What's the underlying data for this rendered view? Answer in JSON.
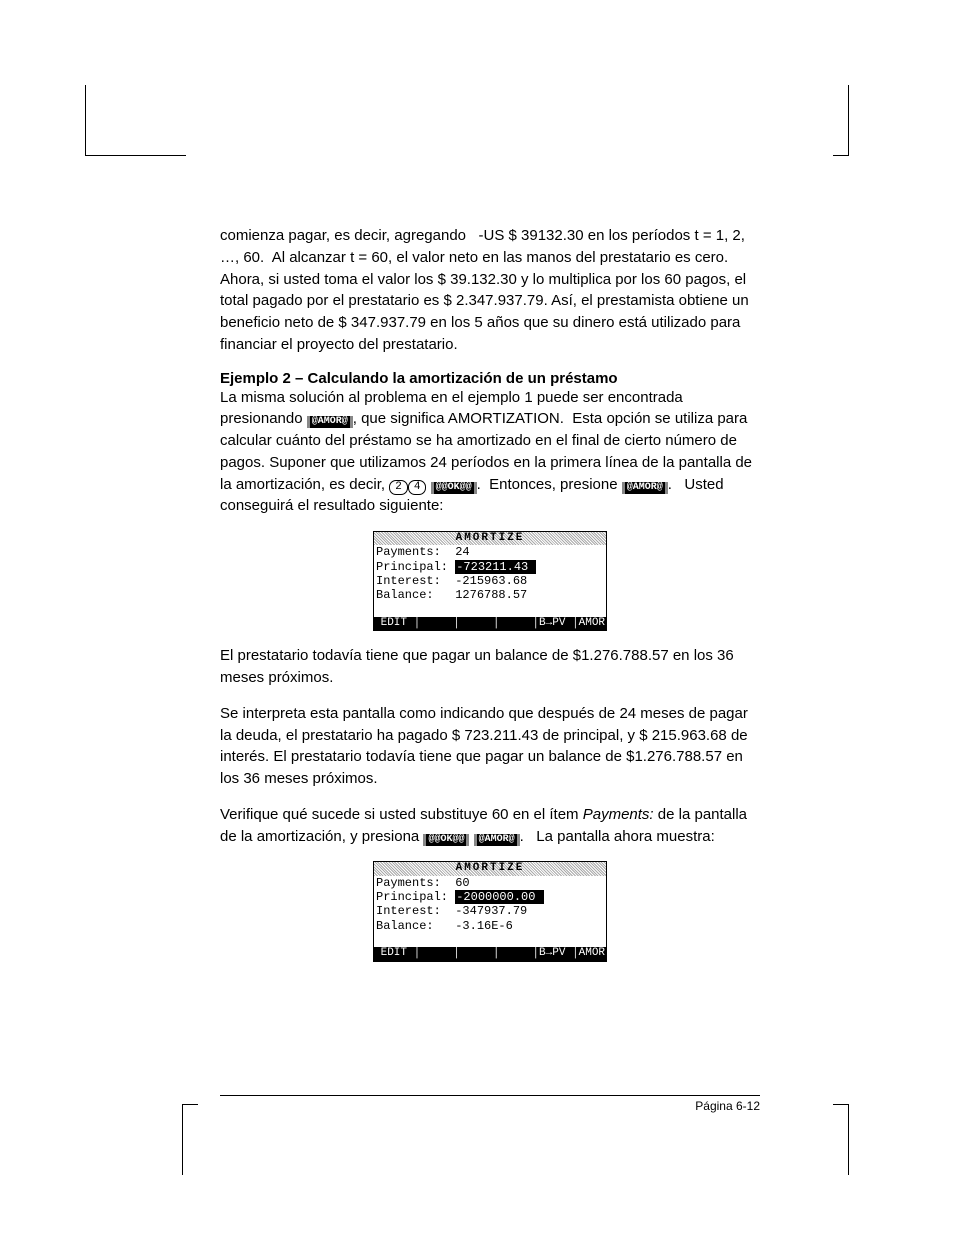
{
  "page": {
    "footer_label": "Página 6-12"
  },
  "para1": "comienza pagar, es decir, agregando   -US $ 39132.30 en los períodos t = 1, 2, …, 60.  Al alcanzar t = 60, el valor neto en las manos del prestatario es cero. Ahora, si usted toma el valor los $ 39.132.30 y lo multiplica por los 60 pagos, el total pagado por el prestatario es $ 2.347.937.79. Así, el prestamista obtiene un beneficio neto de $ 347.937.79 en los 5 años que su dinero está utilizado para financiar el proyecto del prestatario.",
  "heading2": "Ejemplo 2 – Calculando la amortización de un préstamo",
  "p2a": "La misma solución al problema en el ejemplo 1 puede ser encontrada presionando ",
  "p2b": ", que significa AMORTIZATION.  Esta opción se utiliza para calcular cuánto del préstamo se ha amortizado en el final de cierto número de pagos. Suponer que utilizamos 24 períodos en la primera línea de la pantalla de la amortización, es decir, ",
  "p2c": ".  Entonces, presione ",
  "p2d": ".   Usted conseguirá el resultado siguiente:",
  "key_amor": "@AMOR@",
  "key_ok": "@@OK@@",
  "key_2": "2",
  "key_4": "4",
  "screen1": {
    "title": "AMORTIZE",
    "rows": [
      {
        "label": "Payments:  ",
        "value": "24",
        "hl": false
      },
      {
        "label": "Principal: ",
        "value": "-723211.43 ",
        "hl": true
      },
      {
        "label": "Interest:  ",
        "value": "-215963.68",
        "hl": false
      },
      {
        "label": "Balance:   ",
        "value": "1276788.57",
        "hl": false
      }
    ],
    "footer": " EDIT │     │     │     │B→PV │AMOR"
  },
  "para3": "El prestatario todavía tiene que pagar un balance de $1.276.788.57 en los 36 meses próximos.",
  "para4": "Se interpreta esta pantalla como indicando que después de 24 meses de pagar la deuda, el prestatario ha pagado $ 723.211.43 de principal, y $ 215.963.68 de interés. El prestatario todavía tiene que pagar un balance de $1.276.788.57 en los 36 meses próximos.",
  "p5a": "Verifique qué sucede si usted substituye 60 en el ítem ",
  "p5_italic": "Payments:",
  "p5b": " de la pantalla de la amortización, y presiona ",
  "p5c": ".   La pantalla ahora muestra:",
  "screen2": {
    "title": "AMORTIZE",
    "rows": [
      {
        "label": "Payments:  ",
        "value": "60",
        "hl": false
      },
      {
        "label": "Principal: ",
        "value": "-2000000.00 ",
        "hl": true
      },
      {
        "label": "Interest:  ",
        "value": "-347937.79",
        "hl": false
      },
      {
        "label": "Balance:   ",
        "value": "-3.16E-6",
        "hl": false
      }
    ],
    "footer": " EDIT │     │     │     │B→PV │AMOR"
  }
}
